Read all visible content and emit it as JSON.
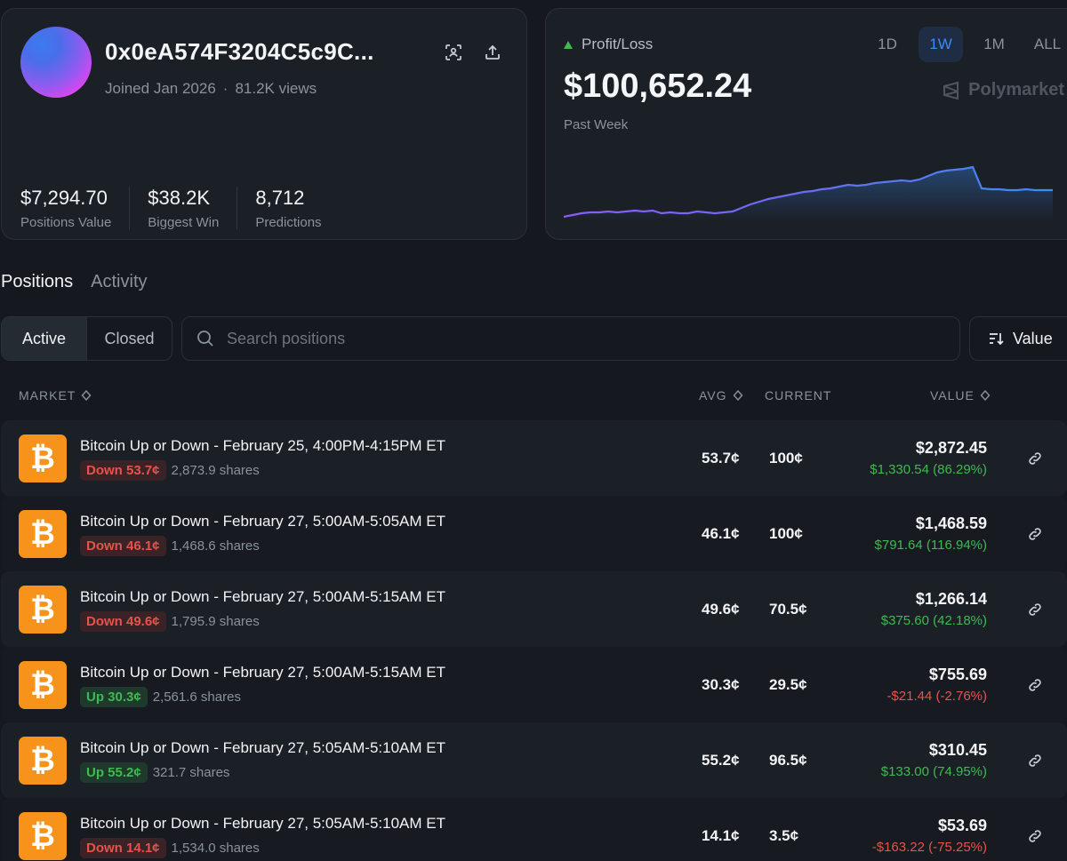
{
  "profile": {
    "address": "0x0eA574F3204C5c9C...",
    "joined": "Joined Jan 2026",
    "views": "81.2K views",
    "stats": [
      {
        "value": "$7,294.70",
        "label": "Positions Value"
      },
      {
        "value": "$38.2K",
        "label": "Biggest Win"
      },
      {
        "value": "8,712",
        "label": "Predictions"
      }
    ]
  },
  "pnl": {
    "label": "Profit/Loss",
    "value": "$100,652.24",
    "period": "Past Week",
    "ranges": [
      "1D",
      "1W",
      "1M",
      "ALL"
    ],
    "active_range": "1W",
    "brand": "Polymarket"
  },
  "tabs": [
    "Positions",
    "Activity"
  ],
  "filters": {
    "active_label": "Active",
    "closed_label": "Closed",
    "search_placeholder": "Search positions",
    "sort_label": "Value"
  },
  "columns": {
    "market": "MARKET",
    "avg": "AVG",
    "current": "CURRENT",
    "value": "VALUE"
  },
  "positions": [
    {
      "title": "Bitcoin Up or Down - February 25, 4:00PM-4:15PM ET",
      "side": "Down 53.7¢",
      "side_type": "down",
      "shares": "2,873.9 shares",
      "avg": "53.7¢",
      "current": "100¢",
      "value": "$2,872.45",
      "pnl": "$1,330.54 (86.29%)",
      "pnl_type": "pos"
    },
    {
      "title": "Bitcoin Up or Down - February 27, 5:00AM-5:05AM ET",
      "side": "Down 46.1¢",
      "side_type": "down",
      "shares": "1,468.6 shares",
      "avg": "46.1¢",
      "current": "100¢",
      "value": "$1,468.59",
      "pnl": "$791.64 (116.94%)",
      "pnl_type": "pos"
    },
    {
      "title": "Bitcoin Up or Down - February 27, 5:00AM-5:15AM ET",
      "side": "Down 49.6¢",
      "side_type": "down",
      "shares": "1,795.9 shares",
      "avg": "49.6¢",
      "current": "70.5¢",
      "value": "$1,266.14",
      "pnl": "$375.60 (42.18%)",
      "pnl_type": "pos"
    },
    {
      "title": "Bitcoin Up or Down - February 27, 5:00AM-5:15AM ET",
      "side": "Up 30.3¢",
      "side_type": "up",
      "shares": "2,561.6 shares",
      "avg": "30.3¢",
      "current": "29.5¢",
      "value": "$755.69",
      "pnl": "-$21.44 (-2.76%)",
      "pnl_type": "neg"
    },
    {
      "title": "Bitcoin Up or Down - February 27, 5:05AM-5:10AM ET",
      "side": "Up 55.2¢",
      "side_type": "up",
      "shares": "321.7 shares",
      "avg": "55.2¢",
      "current": "96.5¢",
      "value": "$310.45",
      "pnl": "$133.00 (74.95%)",
      "pnl_type": "pos"
    },
    {
      "title": "Bitcoin Up or Down - February 27, 5:05AM-5:10AM ET",
      "side": "Down 14.1¢",
      "side_type": "down",
      "shares": "1,534.0 shares",
      "avg": "14.1¢",
      "current": "3.5¢",
      "value": "$53.69",
      "pnl": "-$163.22 (-75.25%)",
      "pnl_type": "neg"
    }
  ],
  "colors": {
    "accent": "#3b8cf6",
    "positive": "#3fb950",
    "negative": "#e5534b",
    "bitcoin": "#f7931a"
  }
}
